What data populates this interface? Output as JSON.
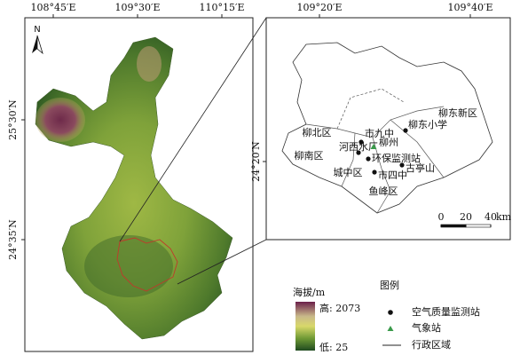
{
  "left_map": {
    "lon_labels": [
      "108°45′E",
      "109°30′E",
      "110°15′E"
    ],
    "lat_labels": [
      "25°30′N",
      "24°35′N"
    ]
  },
  "right_map": {
    "lon_labels": [
      "109°20′E",
      "109°40′E"
    ],
    "lat_labels": [
      "24°20′N"
    ],
    "districts": [
      "柳北区",
      "柳南区",
      "城中区",
      "鱼峰区",
      "柳东新区"
    ],
    "stations": [
      "市九中",
      "柳东小学",
      "河西水厂",
      "环保监测站",
      "古亭山",
      "市四中"
    ],
    "weather_station": "柳州",
    "scale": {
      "ticks": [
        0,
        20,
        40
      ],
      "unit": "km"
    }
  },
  "legend": {
    "elevation": {
      "title": "海拔/m",
      "high": {
        "value": 2073,
        "label": "高: 2073"
      },
      "low": {
        "value": 25,
        "label": "低: 25"
      }
    },
    "title": "图例",
    "items": [
      "空气质量监测站",
      "气象站",
      "行政区域"
    ]
  }
}
